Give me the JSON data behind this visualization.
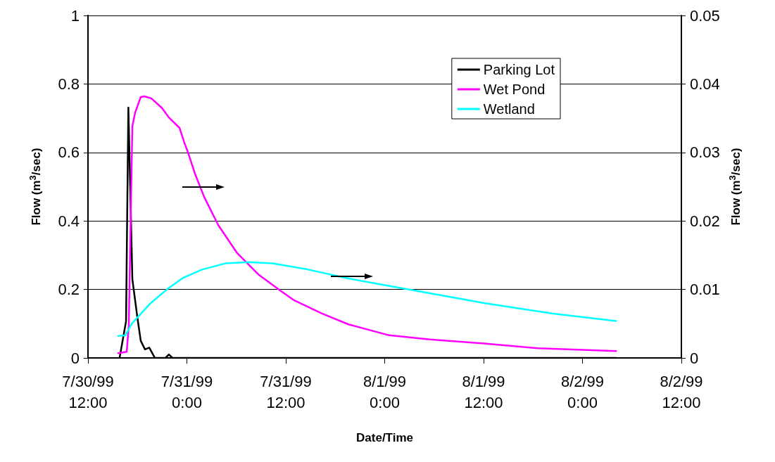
{
  "chart_data": {
    "type": "line",
    "xlabel": "Date/Time",
    "ylabel": "Flow (m$^{3}$/sec)",
    "y2label": "Flow (m$^{3}$/sec)",
    "xlim": [
      "1999-07-30T12:00",
      "1999-08-02T12:00"
    ],
    "xticks": [
      {
        "value": "1999-07-30T12:00",
        "label": "7/30/99\n12:00"
      },
      {
        "value": "1999-07-31T00:00",
        "label": "7/31/99\n0:00"
      },
      {
        "value": "1999-07-31T12:00",
        "label": "7/31/99\n12:00"
      },
      {
        "value": "1999-08-01T00:00",
        "label": "8/1/99\n0:00"
      },
      {
        "value": "1999-08-01T12:00",
        "label": "8/1/99\n12:00"
      },
      {
        "value": "1999-08-02T00:00",
        "label": "8/2/99\n0:00"
      },
      {
        "value": "1999-08-02T12:00",
        "label": "8/2/99\n12:00"
      }
    ],
    "ylim": [
      0,
      1
    ],
    "yticks": [
      0,
      0.2,
      0.4,
      0.6,
      0.8,
      1
    ],
    "y2lim": [
      0,
      0.05
    ],
    "y2ticks": [
      0,
      0.01,
      0.02,
      0.03,
      0.04,
      0.05
    ],
    "grid": "y",
    "legend": "top right",
    "marker": "none",
    "line_style": "solid",
    "series": [
      {
        "name": "Parking Lot",
        "color": "#000000",
        "x": [
          "1999-07-30T15:50",
          "1999-07-30T16:37",
          "1999-07-30T16:54",
          "1999-07-30T17:23",
          "1999-07-30T17:59",
          "1999-07-30T18:24",
          "1999-07-30T18:55",
          "1999-07-30T19:26",
          "1999-07-30T20:07",
          "1999-07-30T21:24",
          "1999-07-30T21:49",
          "1999-07-30T22:15",
          "1999-08-02T04:05"
        ],
        "values": [
          0,
          0.107,
          0.731,
          0.23,
          0.12,
          0.05,
          0.025,
          0.03,
          0,
          0,
          0.01,
          0,
          0
        ]
      },
      {
        "name": "Wet Pond",
        "color": "#ff00ff",
        "axis": "y2",
        "x": [
          "1999-07-30T15:40",
          "1999-07-30T16:42",
          "1999-07-30T16:57",
          "1999-07-30T17:23",
          "1999-07-30T17:43",
          "1999-07-30T18:24",
          "1999-07-30T18:50",
          "1999-07-30T19:41",
          "1999-07-30T20:58",
          "1999-07-30T21:49",
          "1999-07-30T23:06",
          "1999-07-30T23:42",
          "1999-07-31T00:08",
          "1999-07-31T00:59",
          "1999-07-31T02:06",
          "1999-07-31T03:48",
          "1999-07-31T06:06",
          "1999-07-31T08:40",
          "1999-07-31T11:29",
          "1999-07-31T13:02",
          "1999-07-31T16:21",
          "1999-07-31T19:36",
          "1999-08-01T00:33",
          "1999-08-01T05:31",
          "1999-08-01T12:05",
          "1999-08-01T18:40",
          "1999-08-02T04:05"
        ],
        "values": [
          0.0007,
          0.0009,
          0.0047,
          0.0338,
          0.0358,
          0.0381,
          0.0382,
          0.0379,
          0.0365,
          0.0351,
          0.0336,
          0.0314,
          0.03,
          0.0269,
          0.0235,
          0.0194,
          0.0153,
          0.0122,
          0.0097,
          0.0084,
          0.0065,
          0.0049,
          0.0033,
          0.0027,
          0.0021,
          0.0014,
          0.001
        ]
      },
      {
        "name": "Wetland",
        "color": "#00ffff",
        "axis": "y2",
        "x": [
          "1999-07-30T15:40",
          "1999-07-30T16:32",
          "1999-07-30T17:18",
          "1999-07-30T19:31",
          "1999-07-30T21:34",
          "1999-07-30T23:32",
          "1999-07-31T01:50",
          "1999-07-31T04:39",
          "1999-07-31T07:28",
          "1999-07-31T10:23",
          "1999-07-31T14:44",
          "1999-07-31T19:36",
          "1999-08-01T02:52",
          "1999-08-01T12:05",
          "1999-08-01T20:17",
          "1999-08-02T04:05"
        ],
        "values": [
          0.0032,
          0.0033,
          0.005,
          0.0079,
          0.01,
          0.0117,
          0.0129,
          0.0138,
          0.014,
          0.0138,
          0.0129,
          0.0116,
          0.01,
          0.008,
          0.0065,
          0.0054
        ]
      }
    ]
  }
}
